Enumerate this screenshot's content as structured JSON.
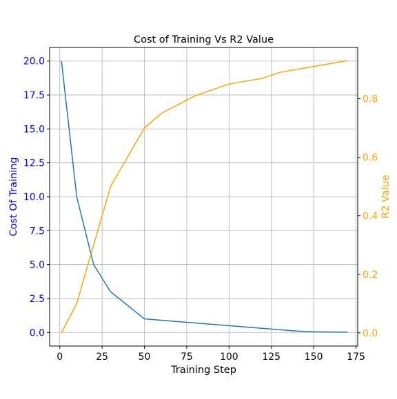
{
  "chart_data": {
    "type": "line",
    "title": "Cost of Training Vs R2 Value",
    "xlabel": "Training Step",
    "ylabel_left": "Cost Of Training",
    "ylabel_right": "R2 Value",
    "xlim": [
      -6,
      176
    ],
    "ylim_left": [
      -1.0,
      21.0
    ],
    "ylim_right": [
      -0.045,
      0.975
    ],
    "grid": true,
    "x_ticks": [
      0,
      25,
      50,
      75,
      100,
      125,
      150,
      175
    ],
    "y_left_ticks": [
      0.0,
      2.5,
      5.0,
      7.5,
      10.0,
      12.5,
      15.0,
      17.5,
      20.0
    ],
    "y_right_ticks": [
      0.0,
      0.2,
      0.4,
      0.6,
      0.8
    ],
    "x_tick_labels": [
      "0",
      "25",
      "50",
      "75",
      "100",
      "125",
      "150",
      "175"
    ],
    "y_left_tick_labels": [
      "0.0",
      "2.5",
      "5.0",
      "7.5",
      "10.0",
      "12.5",
      "15.0",
      "17.5",
      "20.0"
    ],
    "y_right_tick_labels": [
      "0.0",
      "0.2",
      "0.4",
      "0.6",
      "0.8"
    ],
    "series": [
      {
        "axis": "left",
        "color": "#1f77b4",
        "x": [
          1,
          10,
          20,
          30,
          50,
          80,
          100,
          120,
          140,
          150,
          170
        ],
        "y": [
          20.0,
          10.0,
          5.0,
          3.0,
          1.0,
          0.7,
          0.5,
          0.3,
          0.1,
          0.05,
          0.02
        ]
      },
      {
        "axis": "right",
        "color": "#ffa500",
        "x": [
          1,
          10,
          20,
          30,
          50,
          60,
          80,
          100,
          120,
          130,
          150,
          170
        ],
        "y": [
          0.0,
          0.1,
          0.3,
          0.5,
          0.7,
          0.75,
          0.81,
          0.85,
          0.87,
          0.89,
          0.91,
          0.93
        ]
      }
    ],
    "colors": {
      "left_axis": "#0000ff",
      "right_axis": "#ffa500",
      "grid": "#b0b0b0"
    }
  }
}
